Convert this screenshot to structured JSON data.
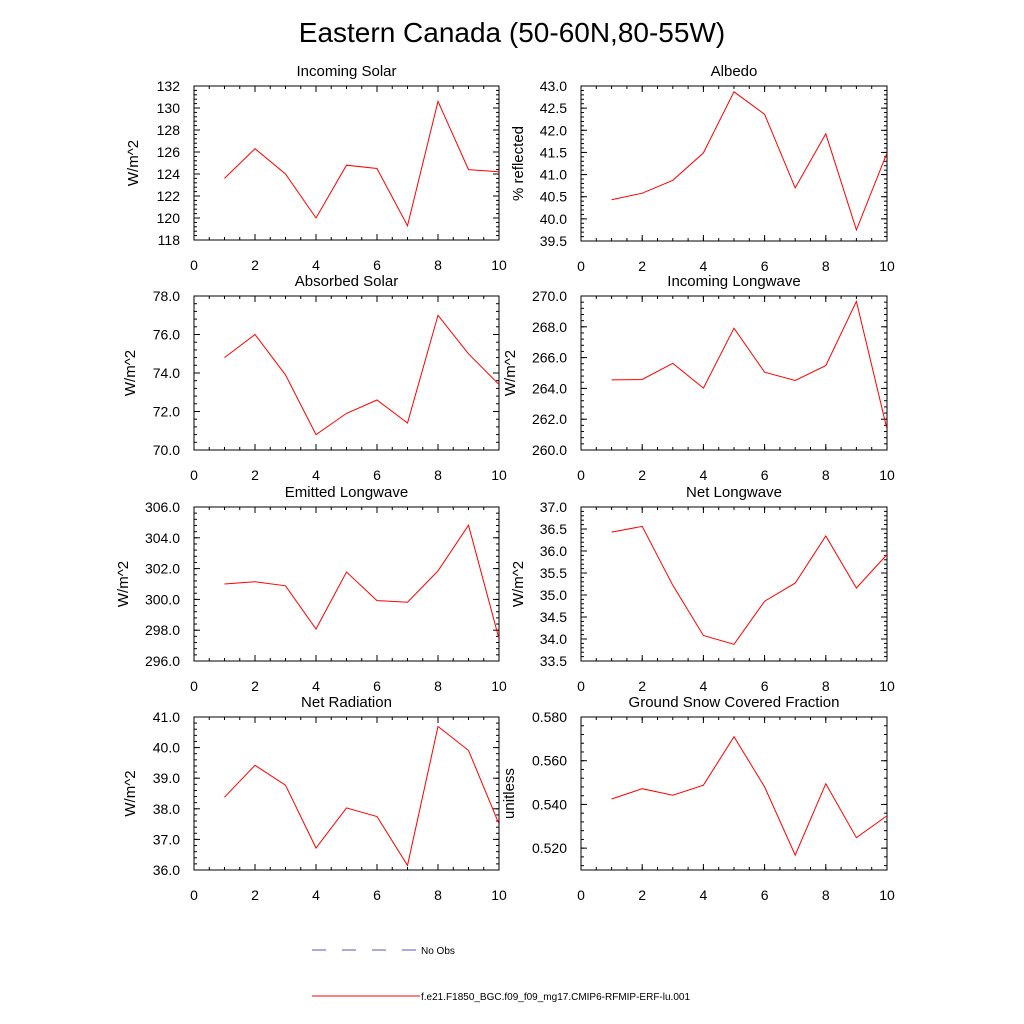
{
  "title": "Eastern Canada (50-60N,80-55W)",
  "chart_data": [
    {
      "type": "line",
      "title": "Incoming Solar",
      "ylabel": "W/m^2",
      "xlim": [
        0,
        10
      ],
      "xticks": [
        0,
        2,
        4,
        6,
        8,
        10
      ],
      "xtick_labels": [
        "0",
        "2",
        "4",
        "6",
        "8",
        "10"
      ],
      "ylim": [
        118,
        132
      ],
      "yticks": [
        118,
        120,
        122,
        124,
        126,
        128,
        130,
        132
      ],
      "ytick_labels": [
        "118",
        "120",
        "122",
        "124",
        "126",
        "128",
        "130",
        "132"
      ],
      "series": [
        {
          "color": "#ff0000",
          "x": [
            1,
            2,
            3,
            4,
            5,
            6,
            7,
            8,
            9,
            10
          ],
          "y": [
            123.6,
            126.3,
            124.0,
            120.0,
            124.8,
            124.5,
            119.3,
            130.6,
            124.4,
            124.2
          ]
        }
      ]
    },
    {
      "type": "line",
      "title": "Albedo",
      "ylabel": "% reflected",
      "xlim": [
        0,
        10
      ],
      "xticks": [
        0,
        2,
        4,
        6,
        8,
        10
      ],
      "xtick_labels": [
        "0",
        "2",
        "4",
        "6",
        "8",
        "10"
      ],
      "ylim": [
        39.5,
        43.0
      ],
      "yticks": [
        39.5,
        40.0,
        40.5,
        41.0,
        41.5,
        42.0,
        42.5,
        43.0
      ],
      "ytick_labels": [
        "39.5",
        "40.0",
        "40.5",
        "41.0",
        "41.5",
        "42.0",
        "42.5",
        "43.0"
      ],
      "series": [
        {
          "color": "#ff0000",
          "x": [
            1,
            2,
            3,
            4,
            5,
            6,
            7,
            8,
            9,
            10
          ],
          "y": [
            40.43,
            40.58,
            40.87,
            41.49,
            42.87,
            42.36,
            40.7,
            41.92,
            39.75,
            41.49
          ]
        }
      ]
    },
    {
      "type": "line",
      "title": "Absorbed Solar",
      "ylabel": "W/m^2",
      "xlim": [
        0,
        10
      ],
      "xticks": [
        0,
        2,
        4,
        6,
        8,
        10
      ],
      "xtick_labels": [
        "0",
        "2",
        "4",
        "6",
        "8",
        "10"
      ],
      "ylim": [
        70.0,
        78.0
      ],
      "yticks": [
        70,
        72,
        74,
        76,
        78
      ],
      "ytick_labels": [
        "70.0",
        "72.0",
        "74.0",
        "76.0",
        "78.0"
      ],
      "series": [
        {
          "color": "#ff0000",
          "x": [
            1,
            2,
            3,
            4,
            5,
            6,
            7,
            8,
            9,
            10
          ],
          "y": [
            74.8,
            76.0,
            73.9,
            70.8,
            71.9,
            72.6,
            71.4,
            77.0,
            75.0,
            73.4
          ]
        }
      ]
    },
    {
      "type": "line",
      "title": "Incoming Longwave",
      "ylabel": "W/m^2",
      "xlim": [
        0,
        10
      ],
      "xticks": [
        0,
        2,
        4,
        6,
        8,
        10
      ],
      "xtick_labels": [
        "0",
        "2",
        "4",
        "6",
        "8",
        "10"
      ],
      "ylim": [
        260.0,
        270.0
      ],
      "yticks": [
        260,
        262,
        264,
        266,
        268,
        270
      ],
      "ytick_labels": [
        "260.0",
        "262.0",
        "264.0",
        "266.0",
        "268.0",
        "270.0"
      ],
      "series": [
        {
          "color": "#ff0000",
          "x": [
            1,
            2,
            3,
            4,
            5,
            6,
            7,
            8,
            9,
            10
          ],
          "y": [
            264.55,
            264.58,
            265.63,
            264.02,
            267.91,
            265.05,
            264.51,
            265.48,
            269.65,
            261.35
          ]
        }
      ]
    },
    {
      "type": "line",
      "title": "Emitted Longwave",
      "ylabel": "W/m^2",
      "xlim": [
        0,
        10
      ],
      "xticks": [
        0,
        2,
        4,
        6,
        8,
        10
      ],
      "xtick_labels": [
        "0",
        "2",
        "4",
        "6",
        "8",
        "10"
      ],
      "ylim": [
        296.0,
        306.0
      ],
      "yticks": [
        296,
        298,
        300,
        302,
        304,
        306
      ],
      "ytick_labels": [
        "296.0",
        "298.0",
        "300.0",
        "302.0",
        "304.0",
        "306.0"
      ],
      "series": [
        {
          "color": "#ff0000",
          "x": [
            1,
            2,
            3,
            4,
            5,
            6,
            7,
            8,
            9,
            10
          ],
          "y": [
            301.0,
            301.15,
            300.88,
            298.08,
            301.78,
            299.92,
            299.82,
            301.85,
            304.82,
            297.45
          ]
        }
      ]
    },
    {
      "type": "line",
      "title": "Net Longwave",
      "ylabel": "W/m^2",
      "xlim": [
        0,
        10
      ],
      "xticks": [
        0,
        2,
        4,
        6,
        8,
        10
      ],
      "xtick_labels": [
        "0",
        "2",
        "4",
        "6",
        "8",
        "10"
      ],
      "ylim": [
        33.5,
        37.0
      ],
      "yticks": [
        33.5,
        34.0,
        34.5,
        35.0,
        35.5,
        36.0,
        36.5,
        37.0
      ],
      "ytick_labels": [
        "33.5",
        "34.0",
        "34.5",
        "35.0",
        "35.5",
        "36.0",
        "36.5",
        "37.0"
      ],
      "series": [
        {
          "color": "#ff0000",
          "x": [
            1,
            2,
            3,
            4,
            5,
            6,
            7,
            8,
            9,
            10
          ],
          "y": [
            36.43,
            36.56,
            35.22,
            34.08,
            33.88,
            34.86,
            35.27,
            36.34,
            35.16,
            35.92
          ]
        }
      ]
    },
    {
      "type": "line",
      "title": "Net Radiation",
      "ylabel": "W/m^2",
      "xlim": [
        0,
        10
      ],
      "xticks": [
        0,
        2,
        4,
        6,
        8,
        10
      ],
      "xtick_labels": [
        "0",
        "2",
        "4",
        "6",
        "8",
        "10"
      ],
      "ylim": [
        36.0,
        41.0
      ],
      "yticks": [
        36,
        37,
        38,
        39,
        40,
        41
      ],
      "ytick_labels": [
        "36.0",
        "37.0",
        "38.0",
        "39.0",
        "40.0",
        "41.0"
      ],
      "series": [
        {
          "color": "#ff0000",
          "x": [
            1,
            2,
            3,
            4,
            5,
            6,
            7,
            8,
            9,
            10
          ],
          "y": [
            38.38,
            39.42,
            38.77,
            36.72,
            38.03,
            37.75,
            36.15,
            40.69,
            39.91,
            37.5
          ]
        }
      ]
    },
    {
      "type": "line",
      "title": "Ground Snow Covered Fraction",
      "ylabel": "unitless",
      "xlim": [
        0,
        10
      ],
      "xticks": [
        0,
        2,
        4,
        6,
        8,
        10
      ],
      "xtick_labels": [
        "0",
        "2",
        "4",
        "6",
        "8",
        "10"
      ],
      "ylim": [
        0.51,
        0.58
      ],
      "yticks": [
        0.52,
        0.54,
        0.56,
        0.58
      ],
      "ytick_labels": [
        "0.520",
        "0.540",
        "0.560",
        "0.580"
      ],
      "series": [
        {
          "color": "#ff0000",
          "x": [
            1,
            2,
            3,
            4,
            5,
            6,
            7,
            8,
            9,
            10
          ],
          "y": [
            0.5425,
            0.5472,
            0.5442,
            0.5488,
            0.571,
            0.548,
            0.5168,
            0.5495,
            0.5248,
            0.5348
          ]
        }
      ]
    }
  ],
  "legend": [
    {
      "label": "No Obs",
      "color": "#5555bb",
      "dash": "dashed"
    },
    {
      "label": "f.e21.F1850_BGC.f09_f09_mg17.CMIP6-RFMIP-ERF-lu.001",
      "color": "#ff0000",
      "dash": "solid"
    }
  ]
}
